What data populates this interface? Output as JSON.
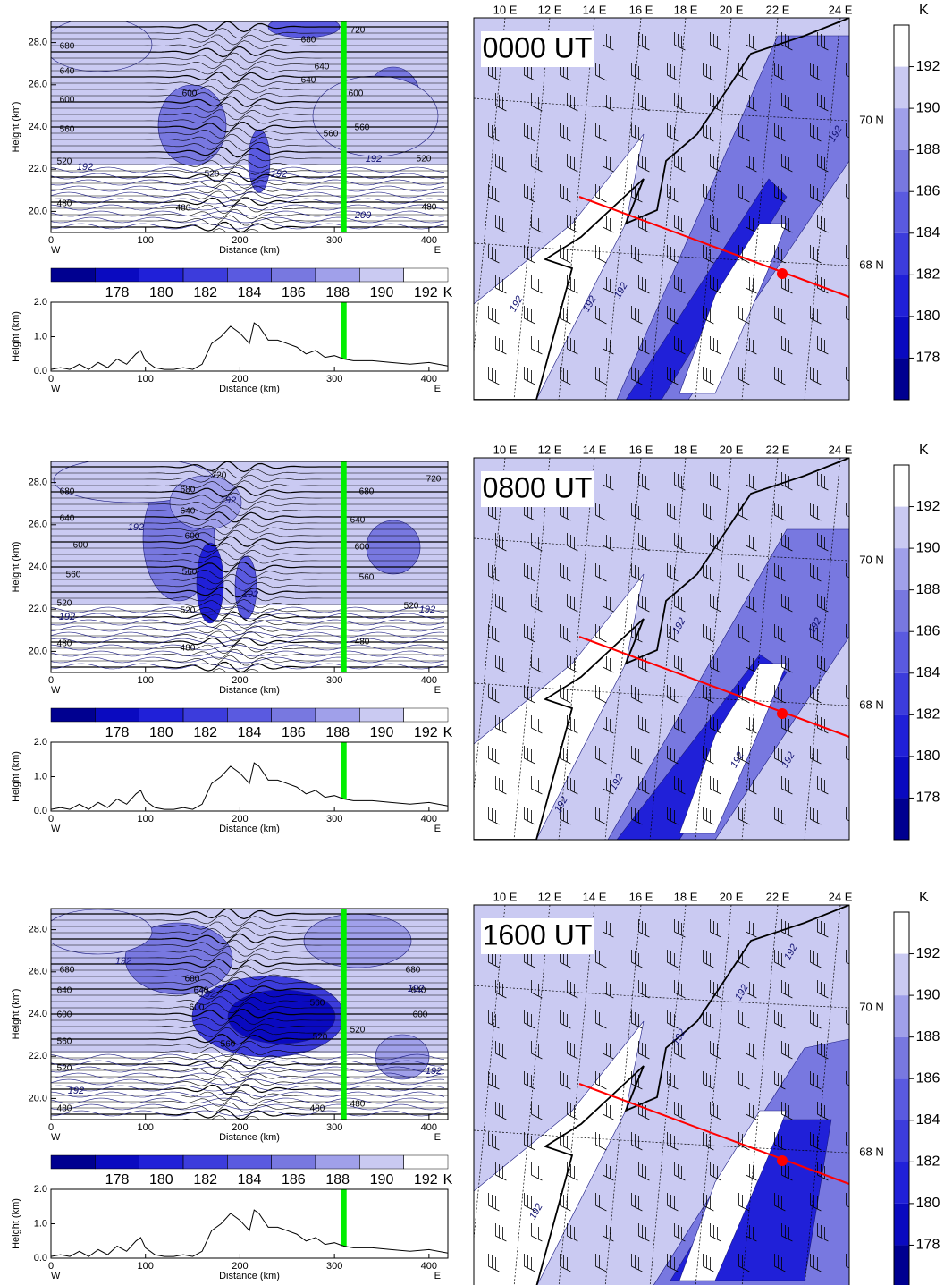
{
  "chart_data": [
    {
      "type": "contour",
      "xlabel": "Distance (km)",
      "ylabel": "Height (km)",
      "xlim": [
        0,
        420
      ],
      "ylim": [
        19,
        29
      ],
      "xticks": [
        0,
        100,
        200,
        300,
        400
      ],
      "yticks": [
        {
          "value": 20,
          "label": "20.0"
        },
        {
          "value": 22,
          "label": "22.0"
        },
        {
          "value": 24,
          "label": "24.0"
        },
        {
          "value": 26,
          "label": "26.0"
        },
        {
          "value": 28,
          "label": "28.0"
        }
      ],
      "x_end_labels": [
        "W",
        "E"
      ],
      "marker_x": 310,
      "marker_color": "#00ee00",
      "isentrope_labels": [
        "680",
        "640",
        "600",
        "560",
        "520",
        "480",
        "600",
        "520",
        "480",
        "640",
        "600",
        "560",
        "520",
        "480",
        "720",
        "560",
        "640",
        "680"
      ],
      "temperature_labels": [
        "192",
        "192",
        "192",
        "200"
      ]
    },
    {
      "type": "colorbar",
      "orientation": "horizontal",
      "lim": [
        176,
        194
      ],
      "ticks": [
        178,
        180,
        182,
        184,
        186,
        188,
        190,
        192
      ],
      "unit": "K",
      "colors": [
        "#000090",
        "#0a0ac0",
        "#2020d8",
        "#3c3cdc",
        "#5a5ae0",
        "#7878e0",
        "#a0a0ea",
        "#cacaf2",
        "#ffffff"
      ]
    },
    {
      "type": "line",
      "xlabel": "Distance (km)",
      "ylabel": "Height (km)",
      "xlim": [
        0,
        420
      ],
      "ylim": [
        0,
        2
      ],
      "xticks": [
        0,
        100,
        200,
        300,
        400
      ],
      "yticks": [
        {
          "value": 0,
          "label": "0.0"
        },
        {
          "value": 1,
          "label": "1.0"
        },
        {
          "value": 2,
          "label": "2.0"
        }
      ],
      "x_end_labels": [
        "W",
        "E"
      ],
      "marker_x": 310,
      "marker_color": "#00ee00",
      "x": [
        0,
        10,
        20,
        30,
        40,
        50,
        60,
        70,
        80,
        90,
        95,
        100,
        110,
        120,
        130,
        140,
        150,
        160,
        170,
        180,
        190,
        200,
        210,
        215,
        220,
        230,
        240,
        250,
        260,
        270,
        280,
        290,
        300,
        310,
        320,
        340,
        360,
        380,
        400,
        420
      ],
      "values": [
        0.05,
        0.1,
        0.05,
        0.2,
        0.05,
        0.25,
        0.1,
        0.35,
        0.2,
        0.5,
        0.6,
        0.3,
        0.1,
        0.05,
        0.05,
        0.1,
        0.05,
        0.2,
        0.8,
        1.0,
        1.3,
        1.1,
        0.8,
        1.4,
        1.3,
        0.9,
        0.9,
        0.8,
        0.7,
        0.5,
        0.6,
        0.4,
        0.45,
        0.35,
        0.3,
        0.3,
        0.25,
        0.2,
        0.25,
        0.15
      ]
    },
    {
      "type": "map",
      "time_label": "0000 UT",
      "lon_labels": [
        "10 E",
        "12 E",
        "14 E",
        "16 E",
        "18 E",
        "20 E",
        "22 E",
        "24 E"
      ],
      "lat_labels": [
        "70 N",
        "68 N"
      ],
      "temperature_labels": [
        "192",
        "192",
        "192",
        "192"
      ],
      "section_color": "#ff0000"
    },
    {
      "type": "colorbar",
      "orientation": "vertical",
      "lim": [
        176,
        194
      ],
      "ticks": [
        178,
        180,
        182,
        184,
        186,
        188,
        190,
        192
      ],
      "unit": "K",
      "colors": [
        "#000090",
        "#0a0ac0",
        "#2020d8",
        "#3c3cdc",
        "#5a5ae0",
        "#7878e0",
        "#a0a0ea",
        "#cacaf2",
        "#ffffff"
      ]
    },
    {
      "type": "contour",
      "xlabel": "Distance (km)",
      "ylabel": "Height (km)",
      "xlim": [
        0,
        420
      ],
      "ylim": [
        19,
        29
      ],
      "xticks": [
        0,
        100,
        200,
        300,
        400
      ],
      "yticks": [
        {
          "value": 20,
          "label": "20.0"
        },
        {
          "value": 22,
          "label": "22.0"
        },
        {
          "value": 24,
          "label": "24.0"
        },
        {
          "value": 26,
          "label": "26.0"
        },
        {
          "value": 28,
          "label": "28.0"
        }
      ],
      "x_end_labels": [
        "W",
        "E"
      ],
      "marker_x": 310,
      "marker_color": "#00ee00",
      "isentrope_labels": [
        "680",
        "640",
        "600",
        "560",
        "520",
        "480",
        "720",
        "680",
        "640",
        "600",
        "560",
        "520",
        "480",
        "680",
        "640",
        "600",
        "560",
        "520",
        "480",
        "720"
      ],
      "temperature_labels": [
        "192",
        "192",
        "192",
        "192",
        "192"
      ]
    },
    {
      "type": "colorbar",
      "orientation": "horizontal",
      "lim": [
        176,
        194
      ],
      "ticks": [
        178,
        180,
        182,
        184,
        186,
        188,
        190,
        192
      ],
      "unit": "K",
      "colors": [
        "#000090",
        "#0a0ac0",
        "#2020d8",
        "#3c3cdc",
        "#5a5ae0",
        "#7878e0",
        "#a0a0ea",
        "#cacaf2",
        "#ffffff"
      ]
    },
    {
      "type": "line",
      "xlabel": "Distance (km)",
      "ylabel": "Height (km)",
      "xlim": [
        0,
        420
      ],
      "ylim": [
        0,
        2
      ],
      "xticks": [
        0,
        100,
        200,
        300,
        400
      ],
      "yticks": [
        {
          "value": 0,
          "label": "0.0"
        },
        {
          "value": 1,
          "label": "1.0"
        },
        {
          "value": 2,
          "label": "2.0"
        }
      ],
      "x_end_labels": [
        "W",
        "E"
      ],
      "marker_x": 310,
      "marker_color": "#00ee00",
      "x": [
        0,
        10,
        20,
        30,
        40,
        50,
        60,
        70,
        80,
        90,
        95,
        100,
        110,
        120,
        130,
        140,
        150,
        160,
        170,
        180,
        190,
        200,
        210,
        215,
        220,
        230,
        240,
        250,
        260,
        270,
        280,
        290,
        300,
        310,
        320,
        340,
        360,
        380,
        400,
        420
      ],
      "values": [
        0.05,
        0.1,
        0.05,
        0.2,
        0.05,
        0.25,
        0.1,
        0.35,
        0.2,
        0.5,
        0.6,
        0.3,
        0.1,
        0.05,
        0.05,
        0.1,
        0.05,
        0.2,
        0.8,
        1.0,
        1.3,
        1.1,
        0.8,
        1.4,
        1.3,
        0.9,
        0.9,
        0.8,
        0.7,
        0.5,
        0.6,
        0.4,
        0.45,
        0.35,
        0.3,
        0.3,
        0.25,
        0.2,
        0.25,
        0.15
      ]
    },
    {
      "type": "map",
      "time_label": "0800 UT",
      "lon_labels": [
        "10 E",
        "12 E",
        "14 E",
        "16 E",
        "18 E",
        "20 E",
        "22 E",
        "24 E"
      ],
      "lat_labels": [
        "70 N",
        "68 N"
      ],
      "temperature_labels": [
        "192",
        "192",
        "192",
        "192",
        "192",
        "192"
      ],
      "section_color": "#ff0000"
    },
    {
      "type": "colorbar",
      "orientation": "vertical",
      "lim": [
        176,
        194
      ],
      "ticks": [
        178,
        180,
        182,
        184,
        186,
        188,
        190,
        192
      ],
      "unit": "K",
      "colors": [
        "#000090",
        "#0a0ac0",
        "#2020d8",
        "#3c3cdc",
        "#5a5ae0",
        "#7878e0",
        "#a0a0ea",
        "#cacaf2",
        "#ffffff"
      ]
    },
    {
      "type": "contour",
      "xlabel": "Distance (km)",
      "ylabel": "Height (km)",
      "xlim": [
        0,
        420
      ],
      "ylim": [
        19,
        29
      ],
      "xticks": [
        0,
        100,
        200,
        300,
        400
      ],
      "yticks": [
        {
          "value": 20,
          "label": "20.0"
        },
        {
          "value": 22,
          "label": "22.0"
        },
        {
          "value": 24,
          "label": "24.0"
        },
        {
          "value": 26,
          "label": "26.0"
        },
        {
          "value": 28,
          "label": "28.0"
        }
      ],
      "x_end_labels": [
        "W",
        "E"
      ],
      "marker_x": 310,
      "marker_color": "#00ee00",
      "isentrope_labels": [
        "680",
        "640",
        "600",
        "560",
        "520",
        "480",
        "680",
        "640",
        "600",
        "560",
        "480",
        "520",
        "520",
        "560",
        "680",
        "640",
        "600",
        "480"
      ],
      "temperature_labels": [
        "192",
        "192",
        "192",
        "192",
        "192"
      ]
    },
    {
      "type": "colorbar",
      "orientation": "horizontal",
      "lim": [
        176,
        194
      ],
      "ticks": [
        178,
        180,
        182,
        184,
        186,
        188,
        190,
        192
      ],
      "unit": "K",
      "colors": [
        "#000090",
        "#0a0ac0",
        "#2020d8",
        "#3c3cdc",
        "#5a5ae0",
        "#7878e0",
        "#a0a0ea",
        "#cacaf2",
        "#ffffff"
      ]
    },
    {
      "type": "line",
      "xlabel": "Distance (km)",
      "ylabel": "Height (km)",
      "xlim": [
        0,
        420
      ],
      "ylim": [
        0,
        2
      ],
      "xticks": [
        0,
        100,
        200,
        300,
        400
      ],
      "yticks": [
        {
          "value": 0,
          "label": "0.0"
        },
        {
          "value": 1,
          "label": "1.0"
        },
        {
          "value": 2,
          "label": "2.0"
        }
      ],
      "x_end_labels": [
        "W",
        "E"
      ],
      "marker_x": 310,
      "marker_color": "#00ee00",
      "x": [
        0,
        10,
        20,
        30,
        40,
        50,
        60,
        70,
        80,
        90,
        95,
        100,
        110,
        120,
        130,
        140,
        150,
        160,
        170,
        180,
        190,
        200,
        210,
        215,
        220,
        230,
        240,
        250,
        260,
        270,
        280,
        290,
        300,
        310,
        320,
        340,
        360,
        380,
        400,
        420
      ],
      "values": [
        0.05,
        0.1,
        0.05,
        0.2,
        0.05,
        0.25,
        0.1,
        0.35,
        0.2,
        0.5,
        0.6,
        0.3,
        0.1,
        0.05,
        0.05,
        0.1,
        0.05,
        0.2,
        0.8,
        1.0,
        1.3,
        1.1,
        0.8,
        1.4,
        1.3,
        0.9,
        0.9,
        0.8,
        0.7,
        0.5,
        0.6,
        0.4,
        0.45,
        0.35,
        0.3,
        0.3,
        0.25,
        0.2,
        0.25,
        0.15
      ]
    },
    {
      "type": "map",
      "time_label": "1600 UT",
      "lon_labels": [
        "10 E",
        "12 E",
        "14 E",
        "16 E",
        "18 E",
        "20 E",
        "22 E",
        "24 E"
      ],
      "lat_labels": [
        "70 N",
        "68 N"
      ],
      "temperature_labels": [
        "192",
        "192",
        "192",
        "192"
      ],
      "section_color": "#ff0000"
    },
    {
      "type": "colorbar",
      "orientation": "vertical",
      "lim": [
        176,
        194
      ],
      "ticks": [
        178,
        180,
        182,
        184,
        186,
        188,
        190,
        192
      ],
      "unit": "K",
      "colors": [
        "#000090",
        "#0a0ac0",
        "#2020d8",
        "#3c3cdc",
        "#5a5ae0",
        "#7878e0",
        "#a0a0ea",
        "#cacaf2",
        "#ffffff"
      ]
    }
  ]
}
